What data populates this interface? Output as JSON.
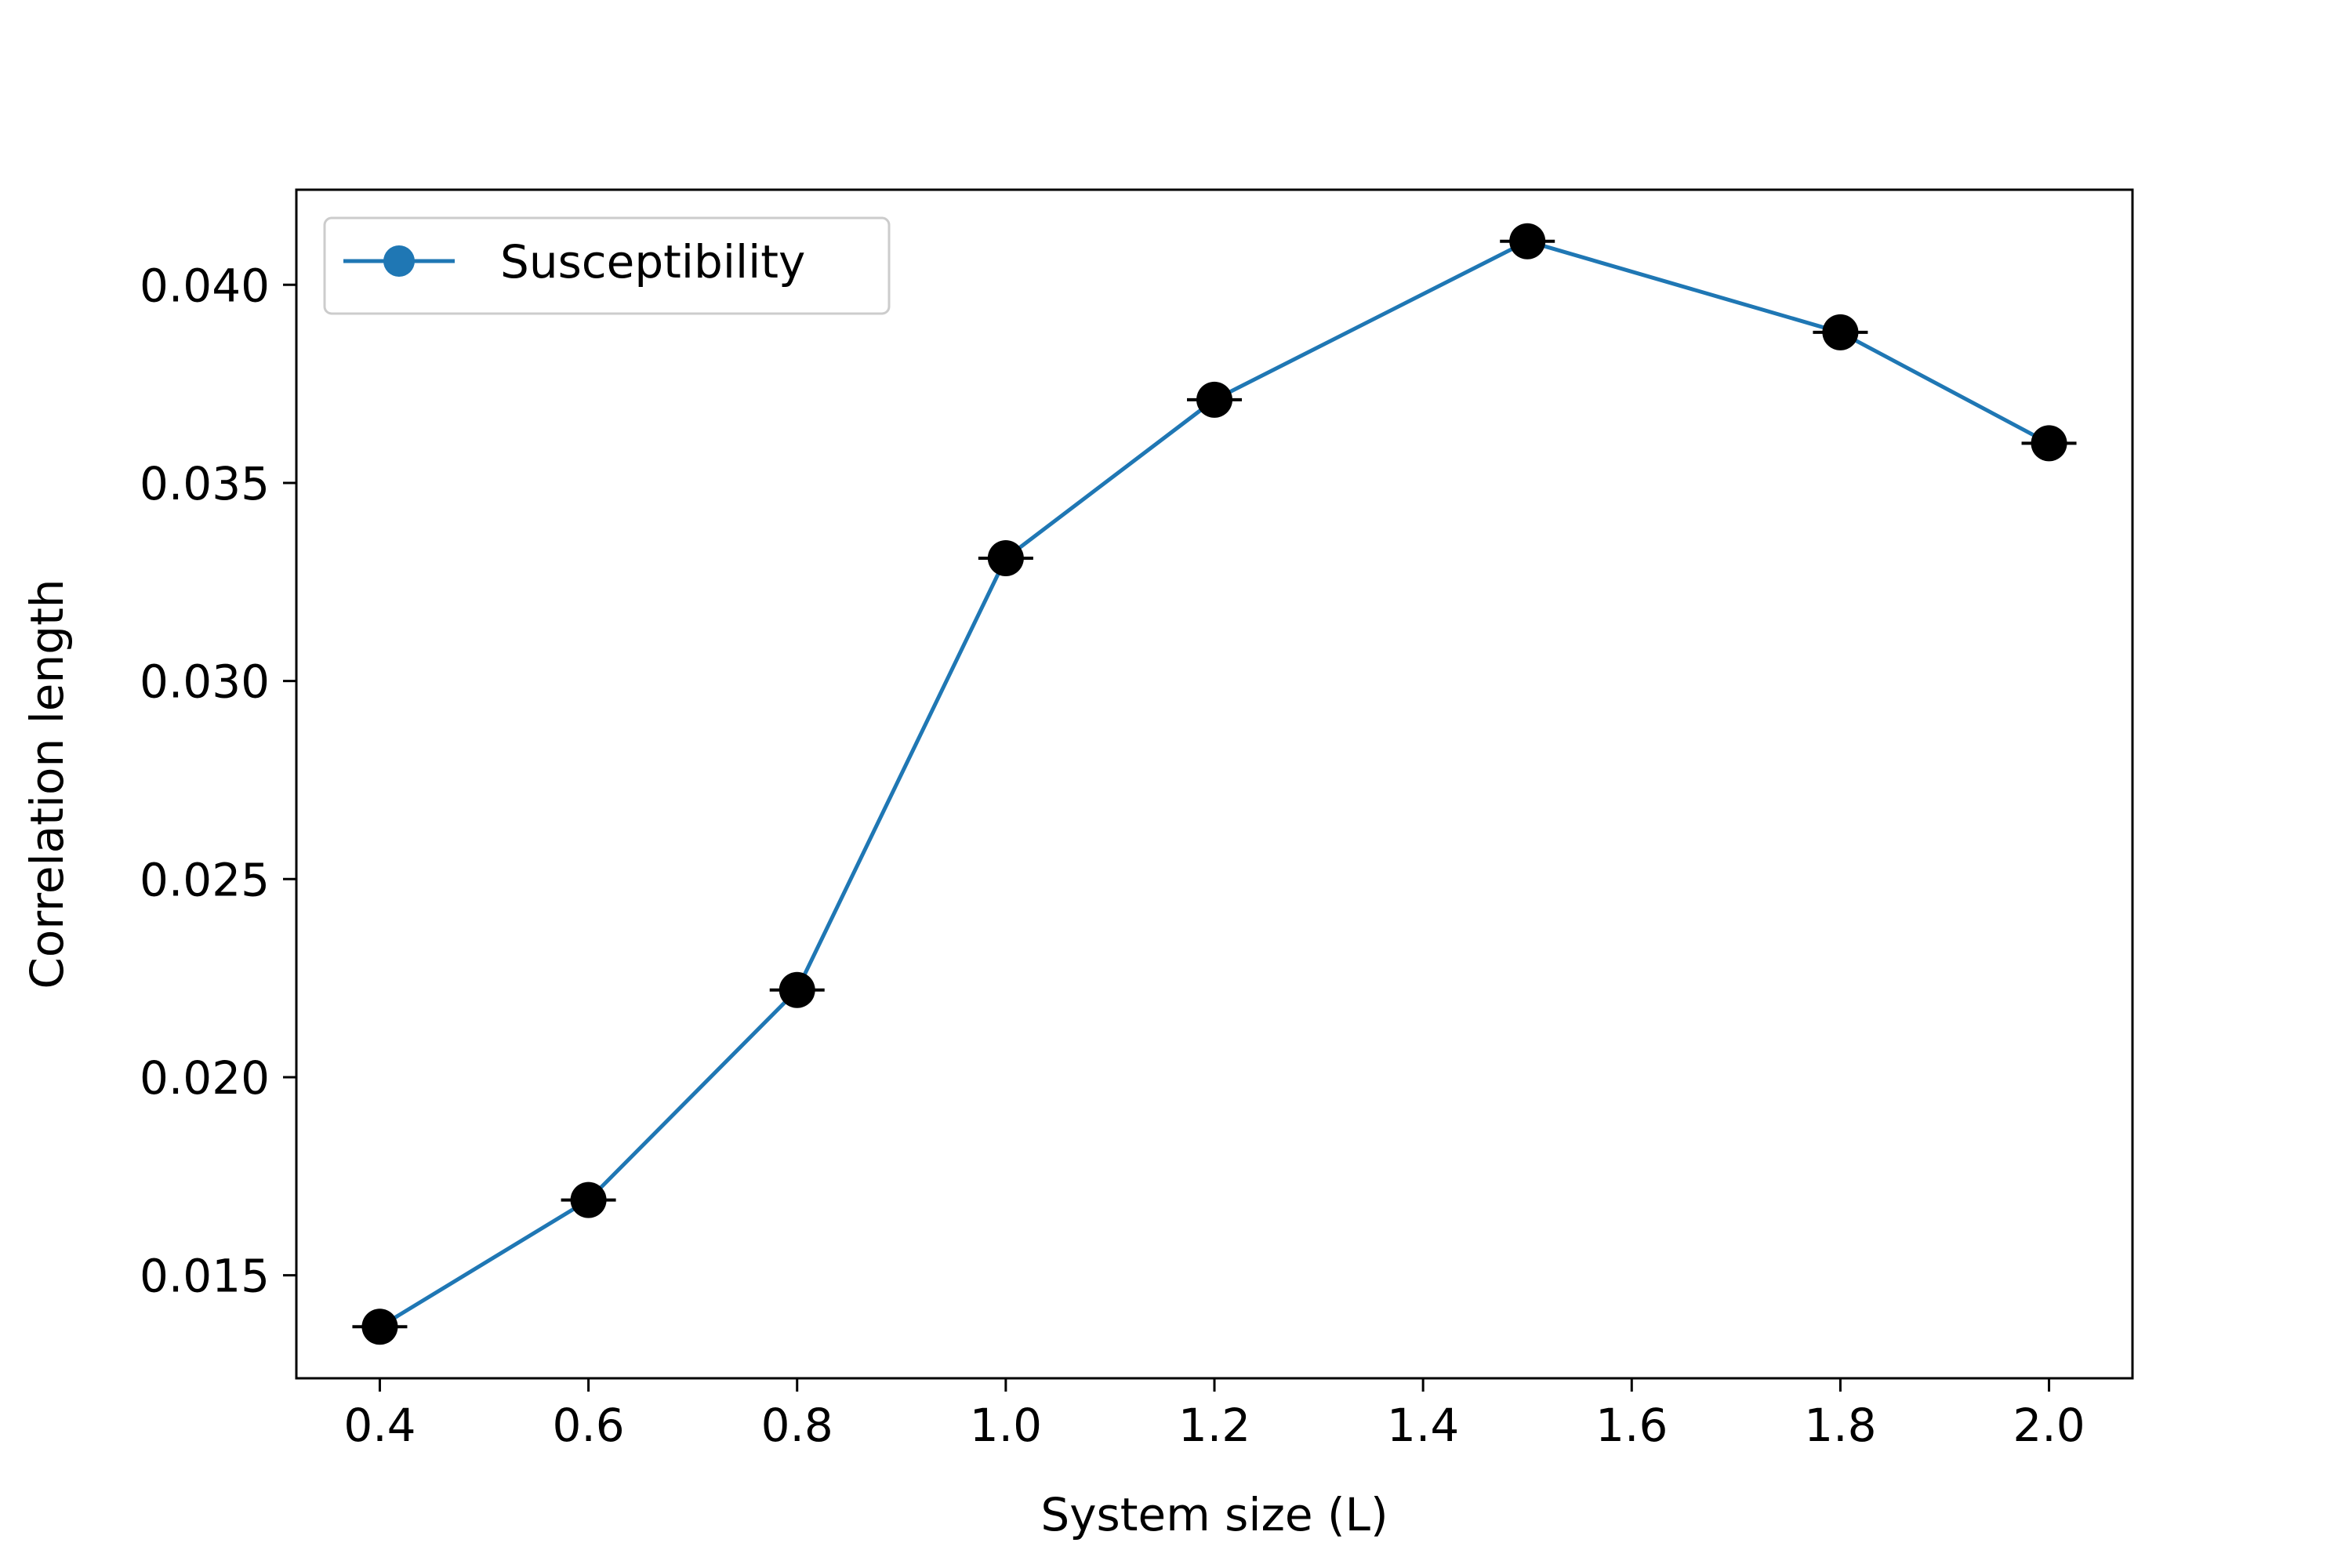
{
  "chart_data": {
    "type": "line",
    "xlabel": "System size (L)",
    "ylabel": "Correlation length",
    "xlim": [
      0.32,
      2.08
    ],
    "ylim": [
      0.0124,
      0.0424
    ],
    "x_ticks": [
      0.4,
      0.6,
      0.8,
      1.0,
      1.2,
      1.4,
      1.6,
      1.8,
      2.0
    ],
    "x_tick_labels": [
      "0.4",
      "0.6",
      "0.8",
      "1.0",
      "1.2",
      "1.4",
      "1.6",
      "1.8",
      "2.0"
    ],
    "y_ticks": [
      0.015,
      0.02,
      0.025,
      0.03,
      0.035,
      0.04
    ],
    "y_tick_labels": [
      "0.015",
      "0.020",
      "0.025",
      "0.030",
      "0.035",
      "0.040"
    ],
    "grid": false,
    "legend": {
      "placement": "top-left",
      "entries": [
        "Susceptibility"
      ]
    },
    "series": [
      {
        "name": "Susceptibility",
        "color": "#1f77b4",
        "marker_color": "#000000",
        "x": [
          0.4,
          0.6,
          0.8,
          1.0,
          1.2,
          1.5,
          1.8,
          2.0
        ],
        "values": [
          0.0137,
          0.0169,
          0.0222,
          0.0331,
          0.0371,
          0.0411,
          0.0388,
          0.036
        ],
        "error": [
          1e-05,
          1e-05,
          1e-05,
          1e-05,
          1e-05,
          1e-05,
          1e-05,
          1e-05
        ]
      }
    ]
  }
}
